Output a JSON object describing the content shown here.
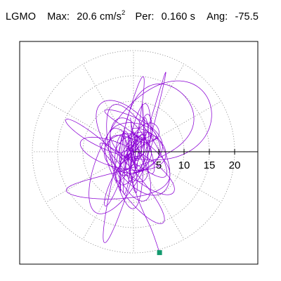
{
  "header": {
    "station": "LGMO",
    "max_label": "Max:",
    "max_value": "20.6 cm/s",
    "max_unit_exp": "2",
    "per_label": "Per:",
    "per_value": "0.160 s",
    "ang_label": "Ang:",
    "ang_value": "-75.5"
  },
  "colors": {
    "trace": "#8a00d4",
    "grid": "#888888",
    "frame": "#000000",
    "end_marker": "#129a6e"
  },
  "chart_data": {
    "type": "polar-particle-motion",
    "title": "",
    "radial_ticks": [
      5,
      10,
      15,
      20
    ],
    "radial_tick_labels": [
      "5",
      "10",
      "15",
      "20"
    ],
    "radial_max": 20,
    "angular_grid_deg": 30,
    "grid": true,
    "units": "cm/s2",
    "max_amplitude": 20.6,
    "period_s": 0.16,
    "angle_deg": -75.5,
    "end_point": {
      "r": 20.6,
      "angle_deg": -75.5
    }
  }
}
